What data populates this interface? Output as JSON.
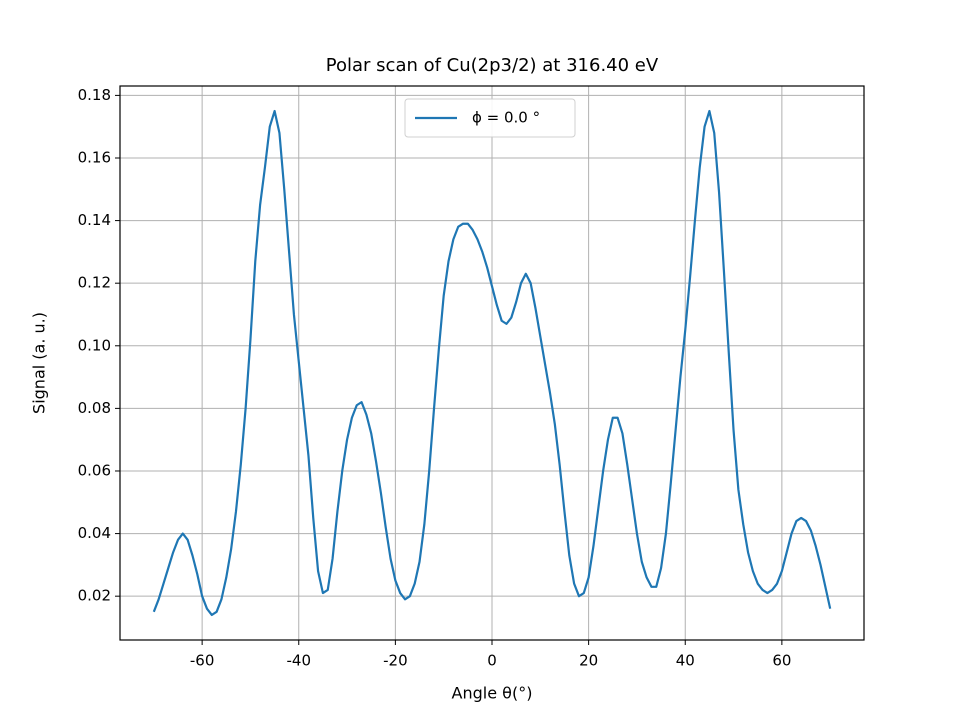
{
  "chart_data": {
    "type": "line",
    "title": "Polar scan of Cu(2p3/2) at 316.40 eV",
    "xlabel": "Angle θ(°)",
    "ylabel": "Signal (a. u.)",
    "x": [
      -70,
      -69,
      -68,
      -67,
      -66,
      -65,
      -64,
      -63,
      -62,
      -61,
      -60,
      -59,
      -58,
      -57,
      -56,
      -55,
      -54,
      -53,
      -52,
      -51,
      -50,
      -49,
      -48,
      -47,
      -46,
      -45,
      -44,
      -43,
      -42,
      -41,
      -40,
      -39,
      -38,
      -37,
      -36,
      -35,
      -34,
      -33,
      -32,
      -31,
      -30,
      -29,
      -28,
      -27,
      -26,
      -25,
      -24,
      -23,
      -22,
      -21,
      -20,
      -19,
      -18,
      -17,
      -16,
      -15,
      -14,
      -13,
      -12,
      -11,
      -10,
      -9,
      -8,
      -7,
      -6,
      -5,
      -4,
      -3,
      -2,
      -1,
      0,
      1,
      2,
      3,
      4,
      5,
      6,
      7,
      8,
      9,
      10,
      11,
      12,
      13,
      14,
      15,
      16,
      17,
      18,
      19,
      20,
      21,
      22,
      23,
      24,
      25,
      26,
      27,
      28,
      29,
      30,
      31,
      32,
      33,
      34,
      35,
      36,
      37,
      38,
      39,
      40,
      41,
      42,
      43,
      44,
      45,
      46,
      47,
      48,
      49,
      50,
      51,
      52,
      53,
      54,
      55,
      56,
      57,
      58,
      59,
      60,
      61,
      62,
      63,
      64,
      65,
      66,
      67,
      68,
      69,
      70
    ],
    "series": [
      {
        "name": "ϕ = 0.0 °",
        "color": "#1f77b4",
        "values": [
          0.015,
          0.019,
          0.024,
          0.029,
          0.034,
          0.038,
          0.04,
          0.038,
          0.033,
          0.027,
          0.02,
          0.016,
          0.014,
          0.015,
          0.019,
          0.026,
          0.035,
          0.047,
          0.062,
          0.08,
          0.102,
          0.127,
          0.145,
          0.157,
          0.17,
          0.175,
          0.168,
          0.15,
          0.13,
          0.11,
          0.095,
          0.08,
          0.065,
          0.045,
          0.028,
          0.021,
          0.022,
          0.032,
          0.047,
          0.06,
          0.07,
          0.077,
          0.081,
          0.082,
          0.078,
          0.072,
          0.063,
          0.053,
          0.042,
          0.032,
          0.025,
          0.021,
          0.019,
          0.02,
          0.024,
          0.031,
          0.043,
          0.06,
          0.08,
          0.099,
          0.116,
          0.127,
          0.134,
          0.138,
          0.139,
          0.139,
          0.137,
          0.134,
          0.13,
          0.125,
          0.119,
          0.113,
          0.108,
          0.107,
          0.109,
          0.114,
          0.12,
          0.123,
          0.12,
          0.112,
          0.103,
          0.094,
          0.085,
          0.075,
          0.062,
          0.047,
          0.033,
          0.024,
          0.02,
          0.021,
          0.026,
          0.036,
          0.048,
          0.06,
          0.07,
          0.077,
          0.077,
          0.072,
          0.062,
          0.051,
          0.04,
          0.031,
          0.026,
          0.023,
          0.023,
          0.029,
          0.04,
          0.056,
          0.073,
          0.09,
          0.105,
          0.122,
          0.14,
          0.157,
          0.17,
          0.175,
          0.168,
          0.149,
          0.124,
          0.098,
          0.073,
          0.054,
          0.043,
          0.034,
          0.028,
          0.024,
          0.022,
          0.021,
          0.022,
          0.024,
          0.028,
          0.034,
          0.04,
          0.044,
          0.045,
          0.044,
          0.041,
          0.036,
          0.03,
          0.023,
          0.016
        ]
      }
    ],
    "xlim": [
      -77,
      77
    ],
    "ylim": [
      0.006,
      0.183
    ],
    "xticks": [
      -60,
      -40,
      -20,
      0,
      20,
      40,
      60
    ],
    "yticks": [
      0.02,
      0.04,
      0.06,
      0.08,
      {
        "value": 0.1,
        "label": "0.10"
      },
      0.12,
      0.14,
      0.16,
      0.18
    ],
    "grid": true,
    "legend": "upper center"
  }
}
